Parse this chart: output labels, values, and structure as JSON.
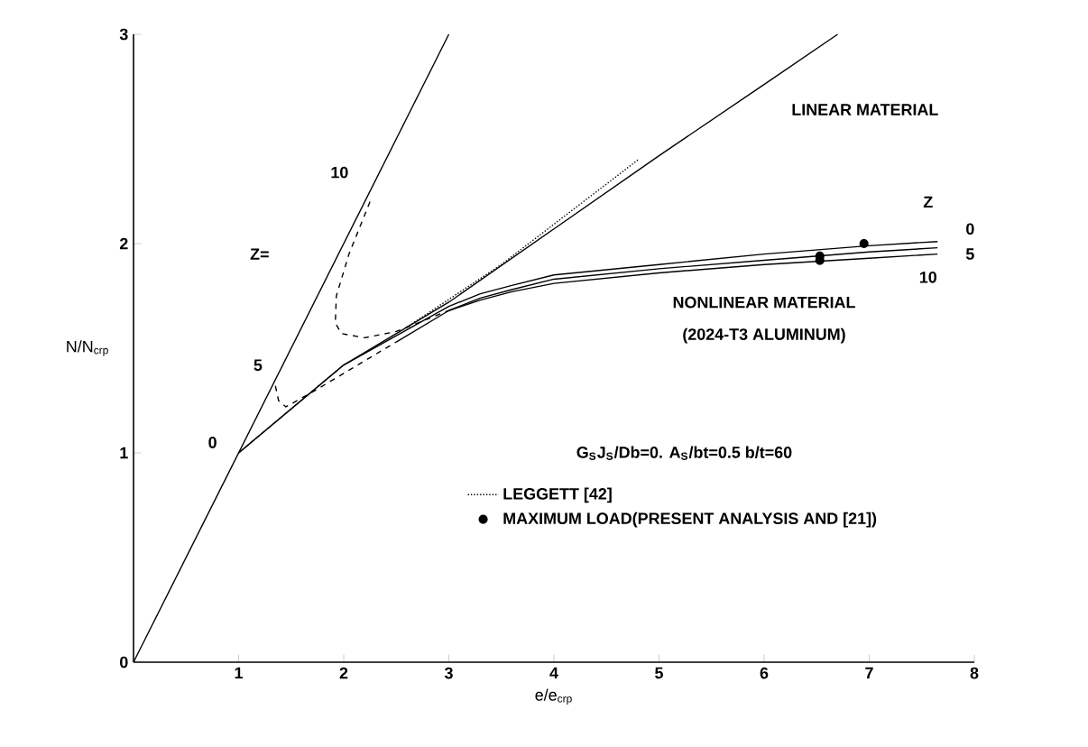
{
  "chart_data": {
    "type": "line",
    "xlabel": "e/e$_{crp}$",
    "ylabel": "N/N$_{crp}$",
    "xlim": [
      0,
      8
    ],
    "ylim": [
      0,
      3
    ],
    "xticks": [
      1,
      2,
      3,
      4,
      5,
      6,
      7,
      8
    ],
    "yticks": [
      0,
      1,
      2,
      3
    ],
    "grid": false,
    "legend": "bottom right",
    "series": [
      {
        "color": "#000000",
        "line_style": "solid",
        "x": [
          0,
          3
        ],
        "values": [
          0,
          3
        ]
      },
      {
        "color": "#000000",
        "line_style": "solid",
        "x": [
          1,
          2,
          3,
          4,
          5,
          6,
          6.7
        ],
        "values": [
          1,
          1.42,
          1.72,
          2.07,
          2.42,
          2.76,
          3
        ]
      },
      {
        "color": "#000000",
        "line_style": "solid",
        "x": [
          1,
          2,
          3,
          3.3,
          3.6,
          4,
          5,
          6,
          7,
          7.65
        ],
        "values": [
          1,
          1.42,
          1.7,
          1.76,
          1.8,
          1.85,
          1.9,
          1.95,
          1.99,
          2.01
        ]
      },
      {
        "color": "#000000",
        "line_style": "solid",
        "x": [
          2.5,
          3,
          3.3,
          3.6,
          4,
          5,
          6,
          7,
          7.65
        ],
        "values": [
          1.53,
          1.68,
          1.74,
          1.78,
          1.83,
          1.88,
          1.92,
          1.96,
          1.98
        ]
      },
      {
        "color": "#000000",
        "line_style": "solid",
        "x": [
          3,
          3.3,
          3.6,
          4,
          5,
          6,
          7,
          7.65
        ],
        "values": [
          1.68,
          1.73,
          1.77,
          1.81,
          1.86,
          1.9,
          1.93,
          1.95
        ]
      },
      {
        "color": "#000000",
        "line_style": "dashed",
        "x": [
          1.35,
          1.38,
          1.45,
          1.7,
          2.0,
          2.5
        ],
        "values": [
          1.32,
          1.25,
          1.22,
          1.29,
          1.38,
          1.53
        ]
      },
      {
        "color": "#000000",
        "line_style": "dashed",
        "x": [
          2.25,
          2.05,
          1.93,
          1.92,
          1.98,
          2.2,
          2.5,
          2.8,
          3.0
        ],
        "values": [
          2.2,
          1.95,
          1.75,
          1.62,
          1.57,
          1.55,
          1.58,
          1.64,
          1.68
        ]
      },
      {
        "name": "LEGGETT [42]",
        "color": "#000000",
        "line_style": "dotted",
        "x": [
          2.6,
          3.5,
          4.8
        ],
        "values": [
          1.6,
          1.9,
          2.4
        ]
      },
      {
        "name": "MAXIMUM LOAD(PRESENT ANALYSIS AND [21])",
        "type": "scatter",
        "marker": "circle",
        "color": "#000000",
        "x": [
          6.53,
          6.53,
          6.95
        ],
        "values": [
          1.92,
          1.94,
          2.0
        ]
      }
    ],
    "annotations": [
      "Z=",
      "10",
      "5",
      "0",
      "LINEAR MATERIAL",
      "Z",
      "0",
      "5",
      "10",
      "NONLINEAR MATERIAL",
      "(2024-T3 ALUMINUM)",
      "G$_{S}$J$_{S}$/Db=0.  A$_{S}$/bt=0.5  b/t=60"
    ]
  }
}
